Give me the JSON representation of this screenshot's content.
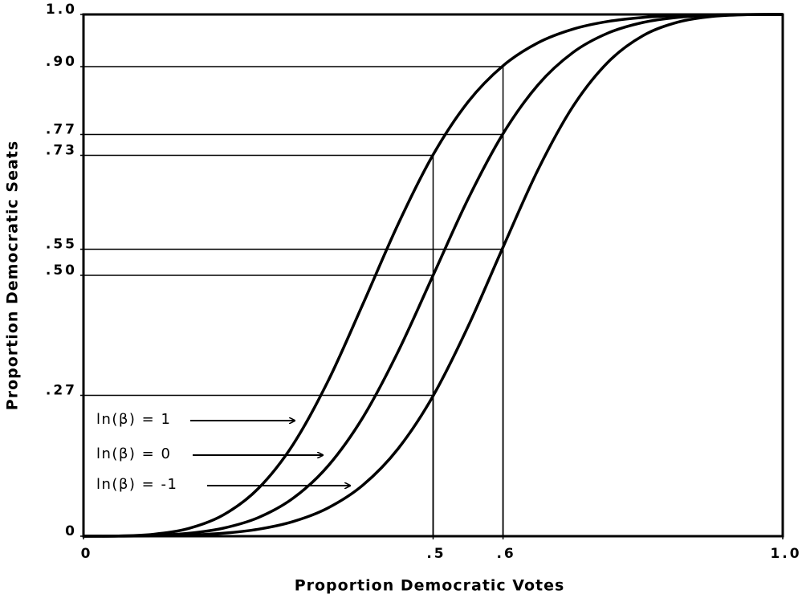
{
  "chart_data": {
    "type": "line",
    "xlabel": "Proportion Democratic Votes",
    "ylabel": "Proportion Democratic Seats",
    "x": [
      0,
      0.05,
      0.1,
      0.15,
      0.2,
      0.25,
      0.3,
      0.35,
      0.4,
      0.45,
      0.5,
      0.55,
      0.6,
      0.65,
      0.7,
      0.75,
      0.8,
      0.85,
      0.9,
      0.95,
      1
    ],
    "series": [
      {
        "name": "ln(β) = 1",
        "color": "#000000",
        "values": [
          0,
          0.0004,
          0.0037,
          0.0147,
          0.0407,
          0.0915,
          0.1763,
          0.2979,
          0.4461,
          0.5982,
          0.7311,
          0.8323,
          0.9017,
          0.9457,
          0.9719,
          0.9866,
          0.9943,
          0.998,
          0.9995,
          0.9999,
          1
        ]
      },
      {
        "name": "ln(β) = 0",
        "color": "#000000",
        "values": [
          0,
          0.0001,
          0.0014,
          0.0055,
          0.0154,
          0.0357,
          0.073,
          0.135,
          0.2286,
          0.3539,
          0.5,
          0.6461,
          0.7714,
          0.865,
          0.927,
          0.9643,
          0.9846,
          0.9945,
          0.9986,
          0.9999,
          1
        ]
      },
      {
        "name": "ln(β) = -1",
        "color": "#000000",
        "values": [
          0,
          0.0001,
          0.0005,
          0.002,
          0.0057,
          0.0134,
          0.0281,
          0.0543,
          0.0983,
          0.1677,
          0.2689,
          0.4018,
          0.5539,
          0.7021,
          0.8237,
          0.9085,
          0.9593,
          0.9853,
          0.9963,
          0.9996,
          1
        ]
      }
    ],
    "guides": [
      {
        "x": 0.6,
        "y": 0.9
      },
      {
        "x": 0.6,
        "y": 0.77
      },
      {
        "x": 0.5,
        "y": 0.73
      },
      {
        "x": 0.6,
        "y": 0.55
      },
      {
        "x": 0.5,
        "y": 0.5
      },
      {
        "x": 0.5,
        "y": 0.27
      }
    ],
    "xlim": [
      0,
      1
    ],
    "ylim": [
      0,
      1
    ],
    "xticks": [
      0,
      {
        "value": 0.5,
        "label": ".5"
      },
      {
        "value": 0.6,
        "label": ".6"
      },
      {
        "value": 1,
        "label": "1.0"
      }
    ],
    "yticks": [
      0,
      {
        "value": 0.27,
        "label": ".27"
      },
      {
        "value": 0.5,
        "label": ".50"
      },
      {
        "value": 0.55,
        "label": ".55"
      },
      {
        "value": 0.73,
        "label": ".73"
      },
      {
        "value": 0.77,
        "label": ".77"
      },
      {
        "value": 0.9,
        "label": ".90"
      },
      {
        "value": 1,
        "label": "1.0"
      }
    ]
  }
}
